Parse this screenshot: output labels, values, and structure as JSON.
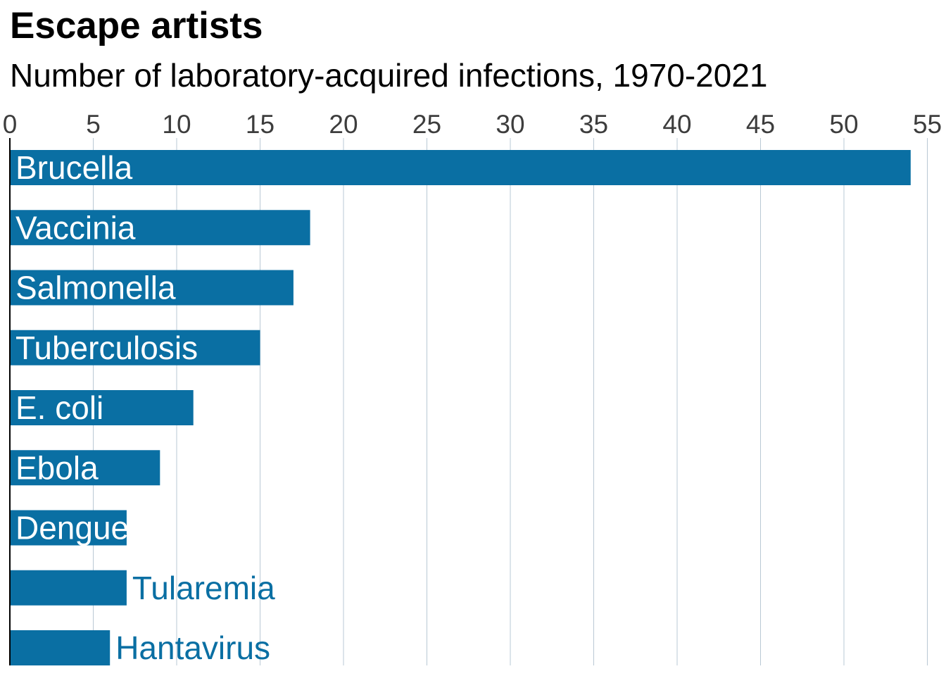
{
  "chart_data": {
    "type": "bar",
    "orientation": "horizontal",
    "title": "Escape artists",
    "subtitle": "Number of laboratory-acquired infections, 1970-2021",
    "xlabel": "",
    "ylabel": "",
    "xlim": [
      0,
      55
    ],
    "x_ticks": [
      0,
      5,
      10,
      15,
      20,
      25,
      30,
      35,
      40,
      45,
      50,
      55
    ],
    "x_tick_labels": [
      "0",
      "5",
      "10",
      "15",
      "20",
      "25",
      "30",
      "35",
      "40",
      "45",
      "50",
      "55"
    ],
    "categories": [
      "Brucella",
      "Vaccinia",
      "Salmonella",
      "Tuberculosis",
      "E. coli",
      "Ebola",
      "Dengue",
      "Tularemia",
      "Hantavirus"
    ],
    "values": [
      54,
      18,
      17,
      15,
      11,
      9,
      7,
      7,
      6
    ],
    "grid": true,
    "legend": "none",
    "colors": {
      "bar": "#0a6fa3",
      "label_inside": "#ffffff",
      "label_outside": "#0a6fa3",
      "grid": "#b9c8d4",
      "axis": "#000000",
      "tick_text": "#3d3d3d"
    }
  }
}
